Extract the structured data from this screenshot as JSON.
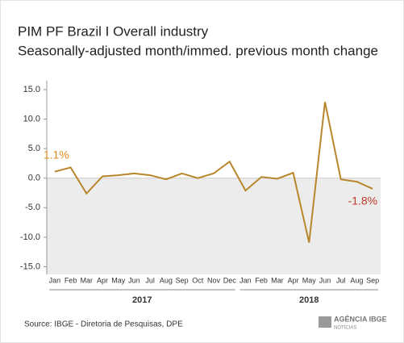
{
  "chart_data": {
    "type": "line",
    "title": "PIM PF Brazil I Overall industry",
    "subtitle": "Seasonally-adjusted month/immed. previous month change",
    "categories": [
      "Jan",
      "Feb",
      "Mar",
      "Apr",
      "May",
      "Jun",
      "Jul",
      "Aug",
      "Sep",
      "Oct",
      "Nov",
      "Dec",
      "Jan",
      "Feb",
      "Mar",
      "Apr",
      "May",
      "Jun",
      "Jul",
      "Aug",
      "Sep"
    ],
    "years": [
      "2017",
      "2018"
    ],
    "series": [
      {
        "color": "#b8862b",
        "values": [
          1.1,
          1.8,
          -2.6,
          0.3,
          0.5,
          0.8,
          0.5,
          -0.2,
          0.8,
          0.0,
          0.8,
          2.8,
          -2.1,
          0.2,
          -0.1,
          0.9,
          -10.9,
          12.9,
          -0.2,
          -0.6,
          -1.8
        ],
        "value_labels": [
          "1.1%",
          null,
          null,
          null,
          null,
          null,
          null,
          null,
          null,
          null,
          null,
          null,
          null,
          null,
          null,
          null,
          null,
          null,
          null,
          null,
          "-1.8%"
        ]
      }
    ],
    "ylim": [
      -16.3,
      16.5
    ],
    "yticks": [
      {
        "value": 15,
        "label": "15.0"
      },
      {
        "value": 10,
        "label": "10.0"
      },
      {
        "value": 5,
        "label": "5.0"
      },
      {
        "value": 0,
        "label": "0.0"
      },
      {
        "value": -5,
        "label": "-5.0"
      },
      {
        "value": -10,
        "label": "-10.0"
      },
      {
        "value": -15,
        "label": "-15.0"
      }
    ],
    "grid": false,
    "source": "Source: IBGE - Diretoria de Pesquisas, DPE",
    "logo": [
      "AGÊNCIA IBGE",
      "NOTÍCIAS"
    ]
  }
}
